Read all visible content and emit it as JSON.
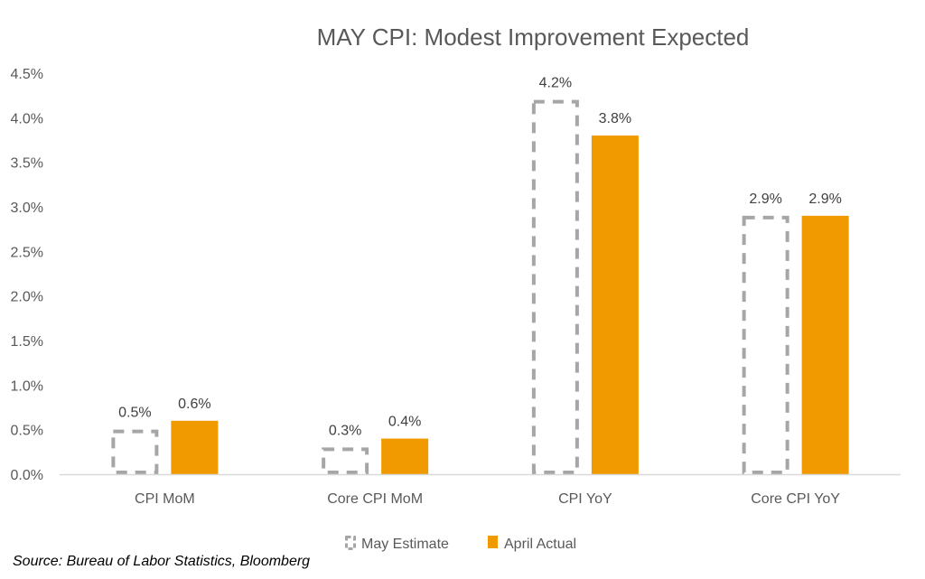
{
  "chart_data": {
    "type": "bar",
    "title": "MAY CPI: Modest Improvement Expected",
    "categories": [
      "CPI MoM",
      "Core CPI MoM",
      "CPI YoY",
      "Core CPI YoY"
    ],
    "series": [
      {
        "name": "May Estimate",
        "values": [
          0.5,
          0.3,
          4.2,
          2.9
        ],
        "labels": [
          "0.5%",
          "0.3%",
          "4.2%",
          "2.9%"
        ],
        "style": "dashed-outline",
        "color": "#A6A6A6"
      },
      {
        "name": "April Actual",
        "values": [
          0.6,
          0.4,
          3.8,
          2.9
        ],
        "labels": [
          "0.6%",
          "0.4%",
          "3.8%",
          "2.9%"
        ],
        "style": "solid",
        "color": "#F09A00"
      }
    ],
    "y_ticks": [
      "0.0%",
      "0.5%",
      "1.0%",
      "1.5%",
      "2.0%",
      "2.5%",
      "3.0%",
      "3.5%",
      "4.0%",
      "4.5%"
    ],
    "ylim": [
      0,
      4.5
    ],
    "grid": false,
    "legend_position": "bottom"
  },
  "source_note": "Source: Bureau of Labor Statistics, Bloomberg"
}
